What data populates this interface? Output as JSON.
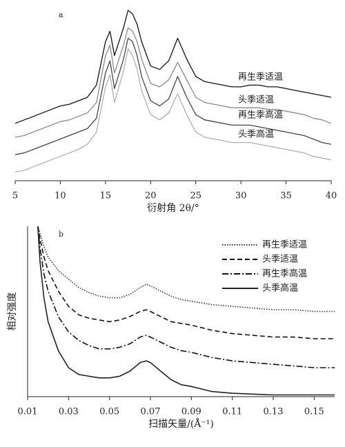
{
  "chart_data": [
    {
      "type": "line",
      "label": "a",
      "xlabel": "衍射角 2θ/°",
      "x": [
        5,
        6,
        7,
        8,
        9,
        10,
        11,
        12,
        13,
        14,
        15,
        15.5,
        16,
        17,
        17.5,
        18,
        18.5,
        19,
        20,
        21,
        22,
        23,
        24,
        25,
        26,
        27,
        28,
        29,
        30,
        31,
        32,
        33,
        34,
        35,
        36,
        37,
        38,
        39,
        40
      ],
      "xlim": [
        5,
        40
      ],
      "xticks": [
        5,
        10,
        15,
        20,
        25,
        30,
        35,
        40
      ],
      "ylim": [
        0,
        100
      ],
      "series": [
        {
          "name": "再生季适温",
          "color": "#111111",
          "values": [
            33,
            35,
            37,
            39,
            41,
            43,
            44,
            46,
            48,
            55,
            80,
            86,
            72,
            88,
            98,
            96,
            90,
            80,
            66,
            64,
            69,
            82,
            70,
            60,
            57,
            56,
            55,
            54,
            54,
            55,
            55,
            54,
            54,
            53,
            52,
            51,
            50,
            49,
            48
          ]
        },
        {
          "name": "头季适温",
          "color": "#8a8a8a",
          "values": [
            25,
            26,
            28,
            30,
            32,
            34,
            35,
            37,
            39,
            45,
            72,
            78,
            62,
            78,
            88,
            86,
            80,
            70,
            56,
            54,
            58,
            68,
            58,
            48,
            45,
            44,
            43,
            42,
            42,
            42,
            42,
            41,
            41,
            40,
            39,
            38,
            36,
            35,
            33
          ]
        },
        {
          "name": "再生季高温",
          "color": "#444444",
          "values": [
            15,
            16,
            18,
            20,
            22,
            24,
            26,
            28,
            30,
            36,
            62,
            69,
            53,
            70,
            82,
            80,
            72,
            60,
            46,
            43,
            47,
            60,
            48,
            38,
            35,
            34,
            33,
            32,
            32,
            32,
            31,
            30,
            29,
            28,
            27,
            26,
            24,
            22,
            21
          ]
        },
        {
          "name": "头季高温",
          "color": "#b0b0b0",
          "values": [
            5,
            6,
            8,
            10,
            12,
            14,
            16,
            18,
            21,
            28,
            54,
            61,
            45,
            63,
            76,
            72,
            64,
            52,
            38,
            35,
            39,
            50,
            38,
            28,
            25,
            24,
            23,
            22,
            22,
            22,
            21,
            20,
            19,
            18,
            17,
            16,
            14,
            13,
            12
          ]
        }
      ]
    },
    {
      "type": "line",
      "label": "b",
      "xlabel": "扫描矢量/(Å⁻¹)",
      "ylabel": "相对强度",
      "x": [
        0.015,
        0.016,
        0.018,
        0.02,
        0.025,
        0.03,
        0.035,
        0.04,
        0.045,
        0.05,
        0.055,
        0.06,
        0.065,
        0.068,
        0.07,
        0.075,
        0.08,
        0.085,
        0.09,
        0.1,
        0.11,
        0.12,
        0.13,
        0.14,
        0.15,
        0.16
      ],
      "xlim": [
        0.01,
        0.16
      ],
      "xticks": [
        0.01,
        0.03,
        0.05,
        0.07,
        0.09,
        0.11,
        0.13,
        0.15
      ],
      "ylim": [
        0,
        100
      ],
      "legend": "upper right",
      "series": [
        {
          "name": "再生季适温",
          "color": "#333333",
          "dash": "dotted",
          "values": [
            100,
            96,
            88,
            82,
            74,
            69,
            64,
            61,
            59,
            58,
            58,
            60,
            64,
            66,
            65,
            62,
            59,
            57,
            56,
            54,
            53,
            52,
            51,
            51,
            50,
            50
          ]
        },
        {
          "name": "头季适温",
          "color": "#111111",
          "dash": "dashed",
          "values": [
            100,
            93,
            82,
            74,
            62,
            53,
            48,
            46,
            45,
            44,
            45,
            47,
            50,
            51,
            50,
            47,
            44,
            43,
            42,
            39,
            37,
            36,
            35,
            35,
            34,
            34
          ]
        },
        {
          "name": "再生季高温",
          "color": "#111111",
          "dash": "dashdot",
          "values": [
            100,
            88,
            72,
            62,
            47,
            38,
            33,
            30,
            28,
            28,
            29,
            31,
            35,
            36,
            35,
            32,
            29,
            27,
            26,
            23,
            21,
            20,
            19,
            18,
            17,
            17
          ]
        },
        {
          "name": "头季高温",
          "color": "#222222",
          "dash": "solid",
          "values": [
            100,
            80,
            58,
            44,
            27,
            17,
            13,
            12,
            11,
            11,
            12,
            15,
            20,
            21,
            20,
            15,
            10,
            7,
            6,
            3,
            2,
            1.5,
            1,
            1,
            1,
            1
          ]
        }
      ]
    }
  ]
}
